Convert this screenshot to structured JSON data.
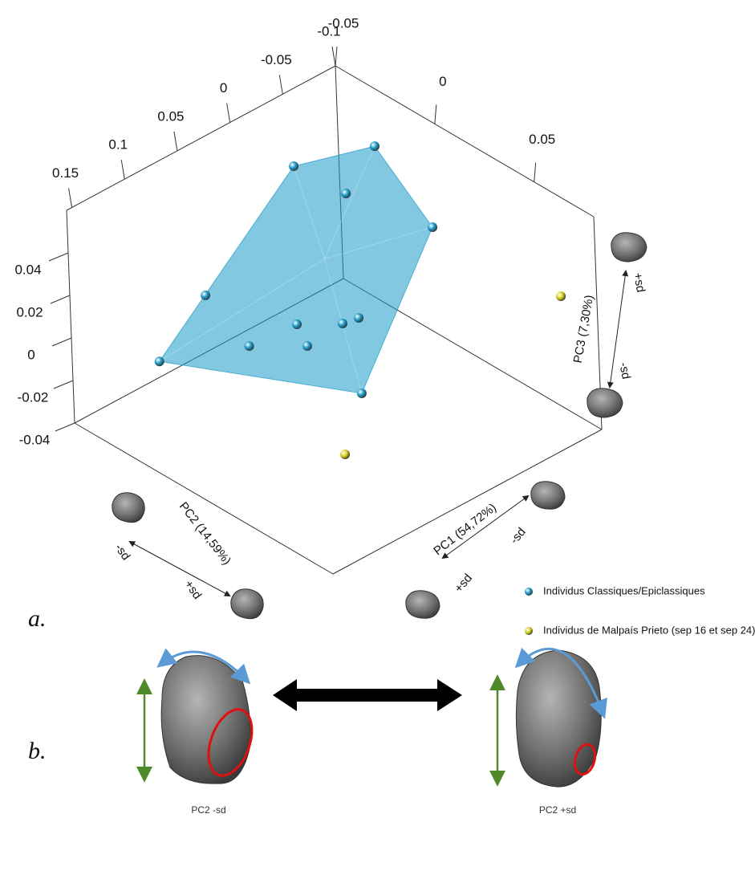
{
  "chart_data": {
    "type": "scatter3d",
    "x_label": "PC1 (54,72%)",
    "y_label": "PC2 (14,59%)",
    "z_label": "PC3 (7,30%)",
    "xlim": [
      -0.05,
      0.08
    ],
    "xticks": [
      -0.05,
      0,
      0.05
    ],
    "ylim": [
      -0.1,
      0.155
    ],
    "yticks": [
      -0.1,
      -0.05,
      0,
      0.05,
      0.1,
      0.15
    ],
    "zlim": [
      -0.04,
      0.06
    ],
    "zticks": [
      -0.04,
      -0.02,
      0,
      0.02,
      0.04
    ],
    "annotations": [
      "-sd",
      "+sd",
      "-sd",
      "+sd",
      "+sd",
      "-sd"
    ],
    "series": [
      {
        "name": "Individus Classiques/Epiclassiques",
        "color": "#1b9bc8",
        "hull": true,
        "x": [
          -0.0085,
          -0.0076,
          -0.0035,
          0.008,
          0.0105,
          0.0089,
          0.02,
          0.0254,
          -0.0345,
          -0.0142,
          -0.0194,
          0.0166
        ],
        "y": [
          0.149,
          0.1055,
          0.074,
          0.0497,
          0.0453,
          0.0088,
          0.0137,
          0.0232,
          -0.0297,
          -0.069,
          -0.05,
          -0.0643
        ],
        "z": [
          0.01,
          0.03,
          0.0,
          0.01,
          0.0,
          0.0,
          0.01,
          -0.02,
          0.04,
          0.05,
          0.03,
          0.03
        ]
      },
      {
        "name": "Individus de Malpaís Prieto (sep 16 et sep 24)",
        "color": "#d8d21a",
        "hull": false,
        "x": [
          0.0688,
          0.039
        ],
        "y": [
          -0.0869,
          0.0655
        ],
        "z": [
          0.02,
          -0.03
        ]
      }
    ],
    "panel_label": "a."
  },
  "panel_b": {
    "label": "b.",
    "captions": [
      "PC2 -sd",
      "PC2 +sd"
    ]
  }
}
